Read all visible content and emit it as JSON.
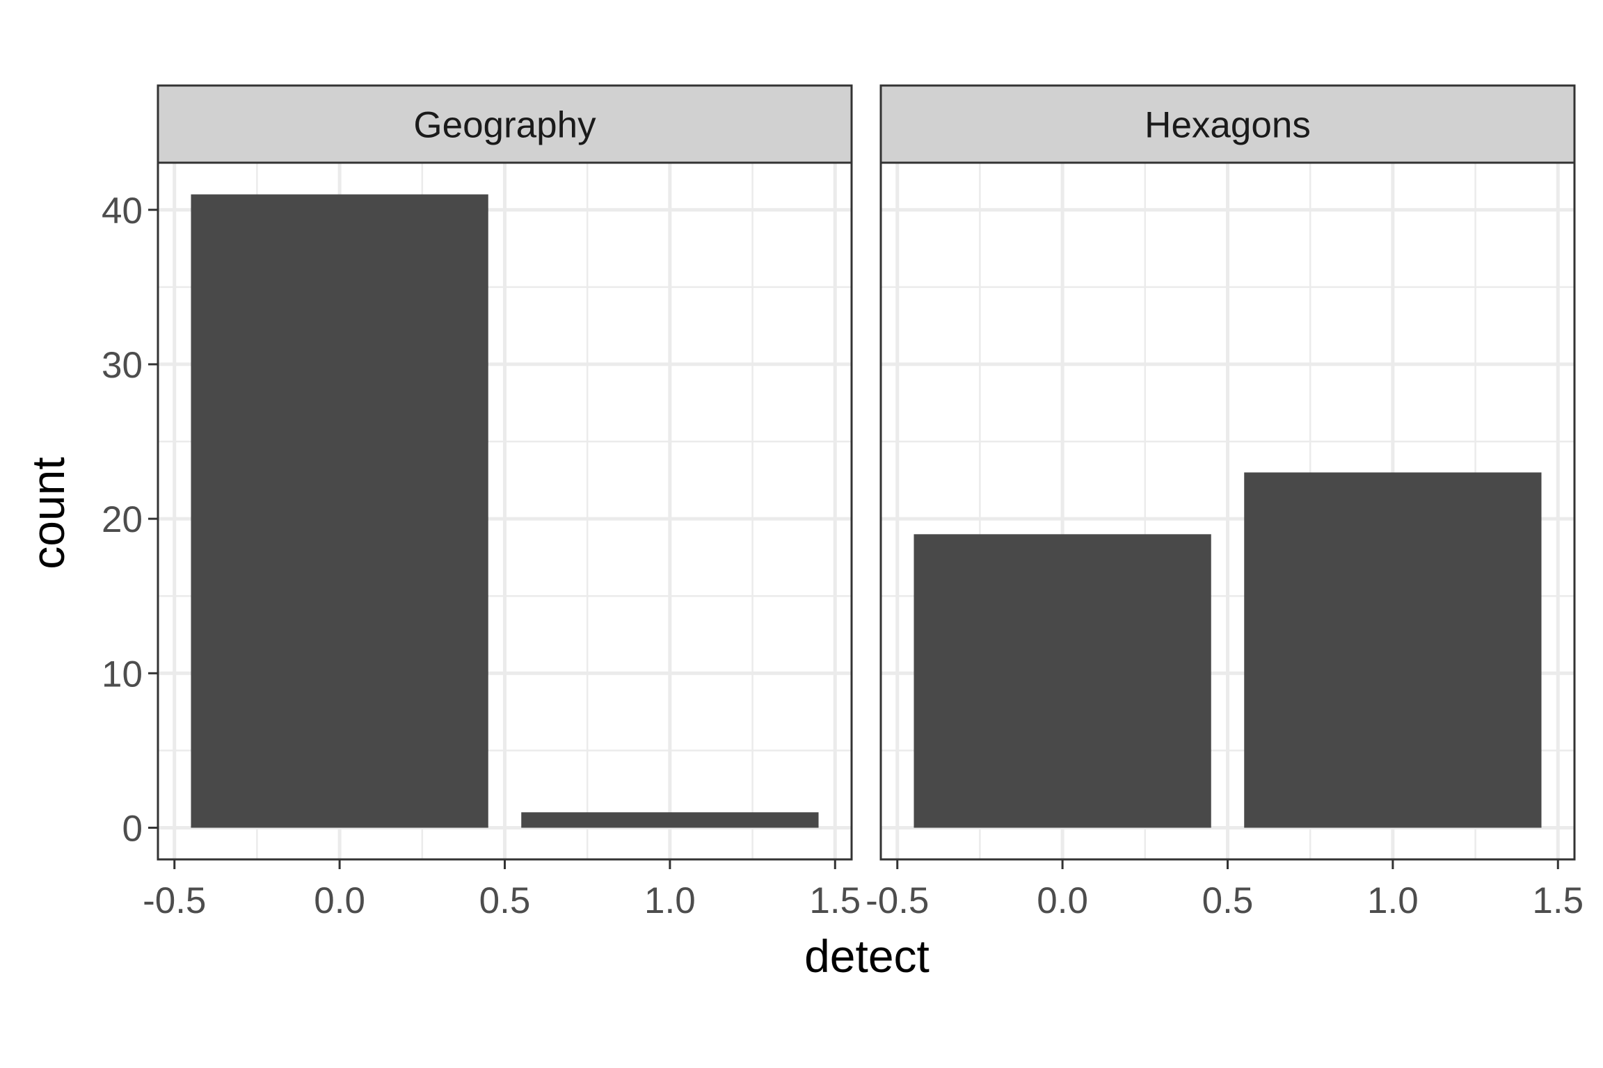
{
  "chart_data": {
    "type": "bar",
    "xlabel": "detect",
    "ylabel": "count",
    "xlim": [
      -0.55,
      1.55
    ],
    "ylim": [
      -2.05,
      43.05
    ],
    "x_ticks": [
      -0.5,
      0.0,
      0.5,
      1.0,
      1.5
    ],
    "x_tick_labels": [
      "-0.5",
      "0.0",
      "0.5",
      "1.0",
      "1.5"
    ],
    "y_ticks": [
      0,
      10,
      20,
      30,
      40
    ],
    "y_tick_labels": [
      "0",
      "10",
      "20",
      "30",
      "40"
    ],
    "bar_width": 0.9,
    "grid": true,
    "legend": "none",
    "colors": {
      "bar": "#494949",
      "strip": "#d1d1d1",
      "grid": "#ebebeb",
      "border": "#333333",
      "panel": "#ffffff"
    },
    "panels": [
      {
        "facet": "Geography",
        "x": [
          0,
          1
        ],
        "values": [
          41,
          1
        ]
      },
      {
        "facet": "Hexagons",
        "x": [
          0,
          1
        ],
        "values": [
          19,
          23
        ]
      }
    ]
  }
}
